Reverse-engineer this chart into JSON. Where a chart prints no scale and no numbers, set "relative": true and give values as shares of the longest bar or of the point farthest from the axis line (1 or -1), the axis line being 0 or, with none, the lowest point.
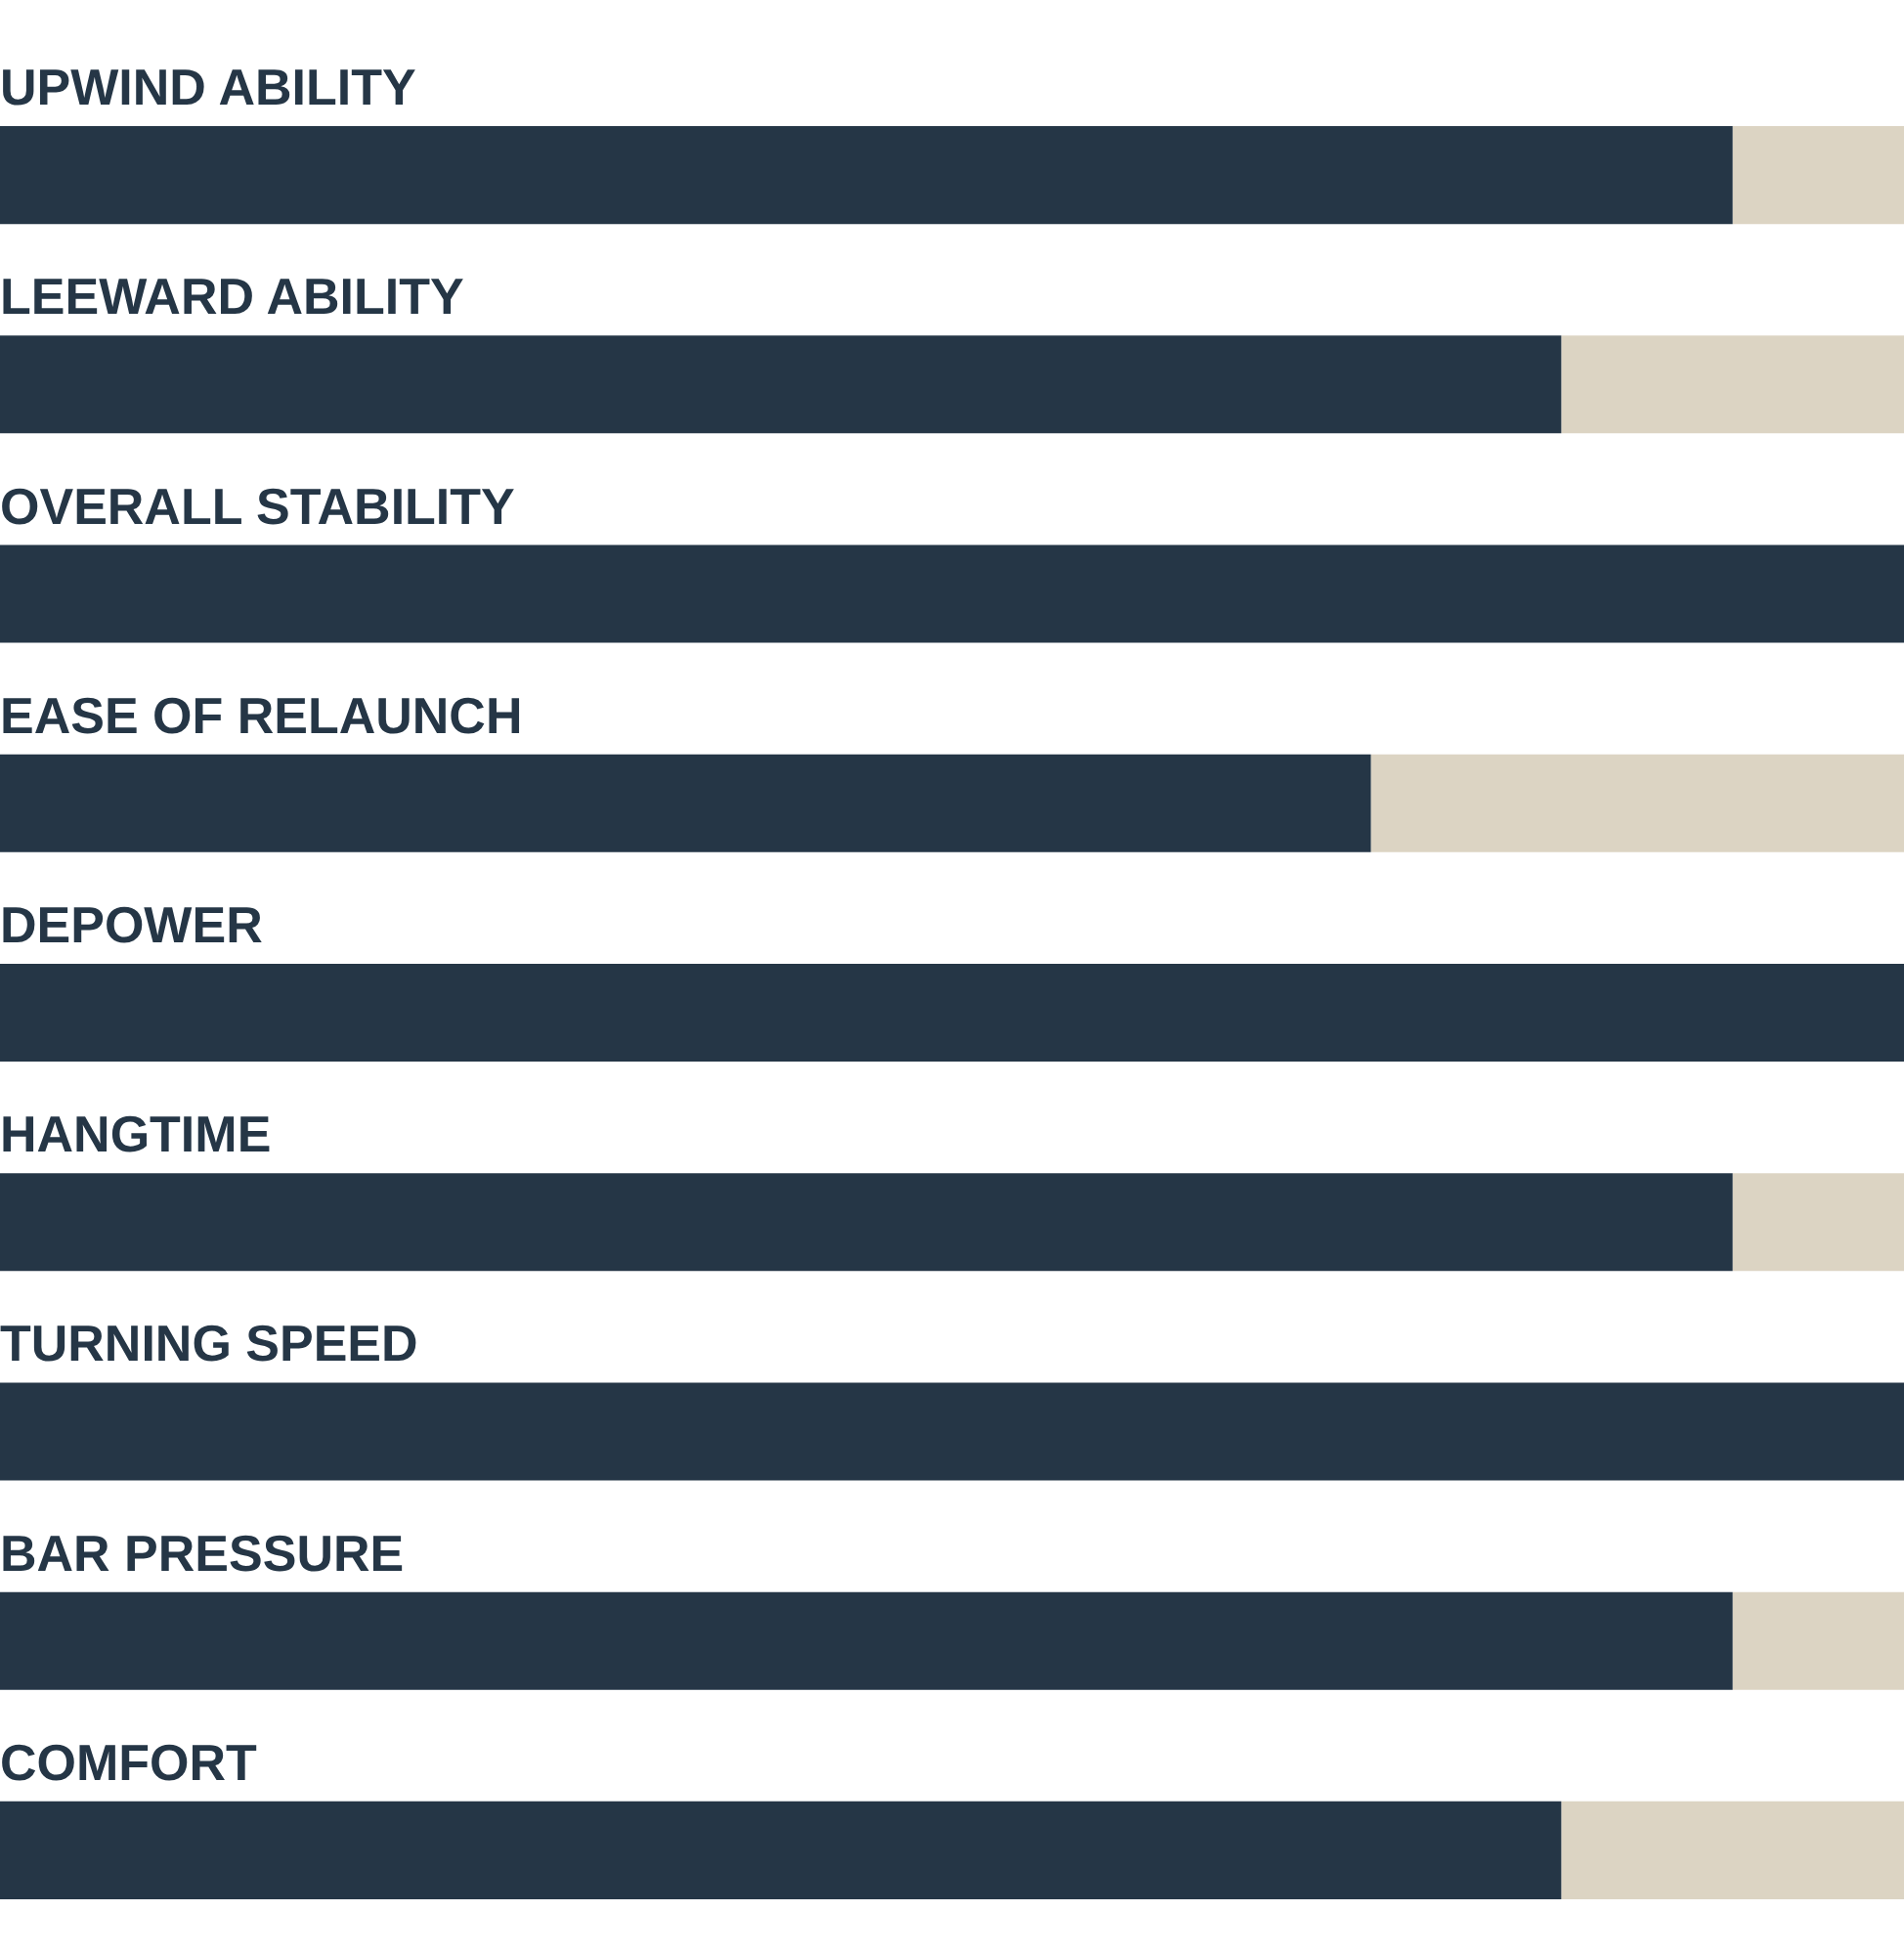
{
  "chart_data": {
    "type": "bar",
    "orientation": "horizontal",
    "stacked": true,
    "relative": true,
    "legend": false,
    "categories": [
      "UPWIND ABILITY",
      "LEEWARD ABILITY",
      "OVERALL STABILITY",
      "EASE OF RELAUNCH",
      "DEPOWER",
      "HANGTIME",
      "TURNING SPEED",
      "BAR PRESSURE",
      "COMFORT"
    ],
    "series": [
      {
        "color": "#253646",
        "values": [
          0.91,
          0.82,
          1,
          0.72,
          1,
          0.91,
          1,
          0.91,
          0.82
        ]
      },
      {
        "color": "#dcd4c3",
        "values": [
          0.09,
          0.18,
          0,
          0.28,
          0,
          0.09,
          0,
          0.09,
          0.18
        ]
      }
    ]
  }
}
